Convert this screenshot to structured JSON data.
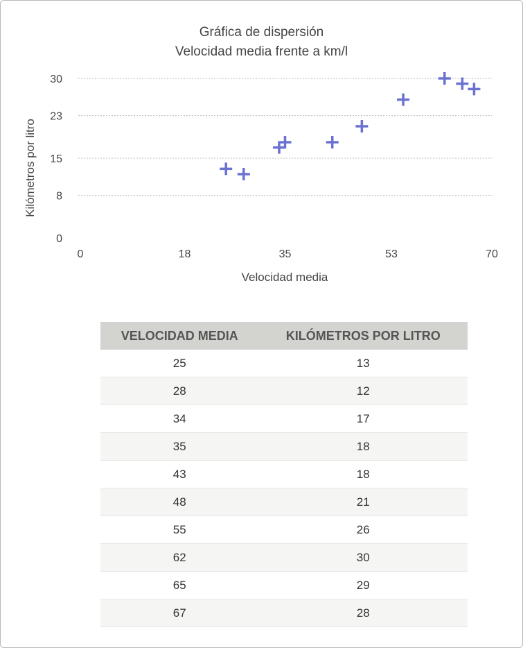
{
  "chart_data": {
    "type": "scatter",
    "title": "Gráfica de dispersión",
    "subtitle": "Velocidad media frente a km/l",
    "xlabel": "Velocidad media",
    "ylabel": "Kilómetros por litro",
    "xlim": [
      0,
      70
    ],
    "ylim": [
      0,
      30
    ],
    "xticks": [
      "0",
      "18",
      "35",
      "53",
      "70"
    ],
    "yticks": [
      "0",
      "8",
      "15",
      "23",
      "30"
    ],
    "grid": "horizontal dotted",
    "marker": "plus",
    "color": "#6b72cf",
    "x": [
      25,
      28,
      34,
      35,
      43,
      48,
      55,
      62,
      65,
      67
    ],
    "y": [
      13,
      12,
      17,
      18,
      18,
      21,
      26,
      30,
      29,
      28
    ]
  },
  "table": {
    "headers": [
      "VELOCIDAD MEDIA",
      "KILÓMETROS POR LITRO"
    ],
    "rows": [
      [
        "25",
        "13"
      ],
      [
        "28",
        "12"
      ],
      [
        "34",
        "17"
      ],
      [
        "35",
        "18"
      ],
      [
        "43",
        "18"
      ],
      [
        "48",
        "21"
      ],
      [
        "55",
        "26"
      ],
      [
        "62",
        "30"
      ],
      [
        "65",
        "29"
      ],
      [
        "67",
        "28"
      ]
    ]
  }
}
